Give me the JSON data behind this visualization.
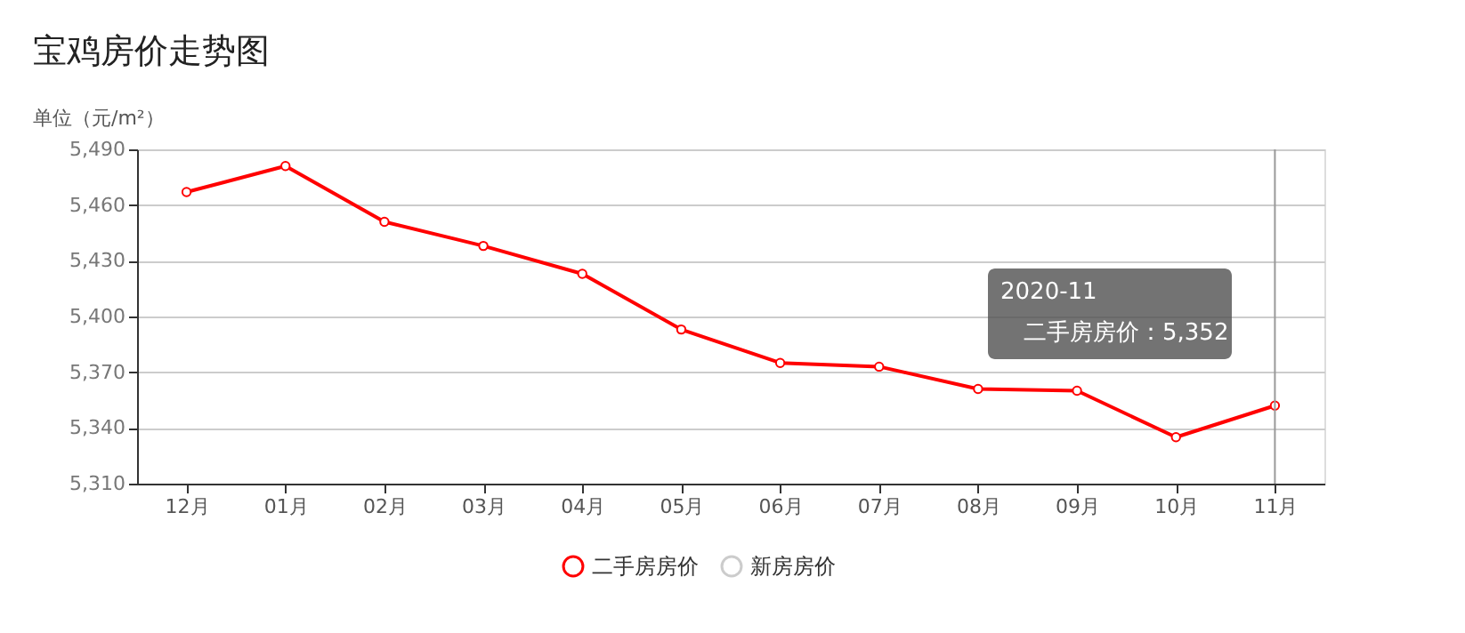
{
  "chart_data": {
    "type": "line",
    "title": "宝鸡房价走势图",
    "ylabel": "单位（元/m²）",
    "categories": [
      "12月",
      "01月",
      "02月",
      "03月",
      "04月",
      "05月",
      "06月",
      "07月",
      "08月",
      "09月",
      "10月",
      "11月"
    ],
    "series": [
      {
        "name": "二手房房价",
        "color": "#ff0000",
        "values": [
          5467,
          5481,
          5451,
          5438,
          5423,
          5393,
          5375,
          5373,
          5361,
          5360,
          5335,
          5352
        ]
      },
      {
        "name": "新房房价",
        "color": "#cccccc",
        "values": [
          null,
          null,
          null,
          null,
          null,
          null,
          null,
          null,
          null,
          null,
          null,
          null
        ]
      }
    ],
    "ylim": [
      5310,
      5490
    ],
    "yticks": [
      {
        "value": 5310,
        "label": "5,310"
      },
      {
        "value": 5340,
        "label": "5,340"
      },
      {
        "value": 5370,
        "label": "5,370"
      },
      {
        "value": 5400,
        "label": "5,400"
      },
      {
        "value": 5430,
        "label": "5,430"
      },
      {
        "value": 5460,
        "label": "5,460"
      },
      {
        "value": 5490,
        "label": "5,490"
      }
    ],
    "ref_lines": [
      {
        "axis": "x",
        "value": "11月",
        "color": "#999999"
      }
    ],
    "annotations": [
      "2020-11",
      "二手房房价：5,352"
    ],
    "grid": "y",
    "legend": "bottom",
    "marker": "circle",
    "line_style": "solid"
  }
}
